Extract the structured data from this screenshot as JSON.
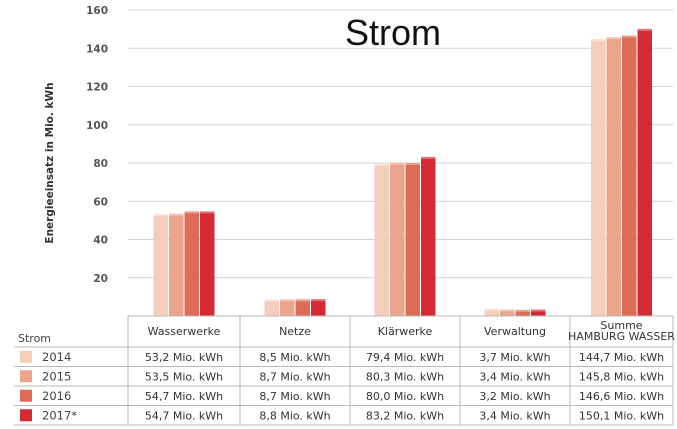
{
  "chart_data": {
    "type": "bar",
    "title": "Strom",
    "ylabel": "Energieeinsatz in Mio. kWh",
    "xlabel": "",
    "ylim": [
      0,
      160
    ],
    "yticks": [
      20,
      40,
      60,
      80,
      100,
      120,
      140,
      160
    ],
    "grid": true,
    "categories": [
      "Wasserwerke",
      "Netze",
      "Klärwerke",
      "Verwaltung",
      "Summe HAMBURG WASSER"
    ],
    "category_labels": [
      [
        "Wasserwerke"
      ],
      [
        "Netze"
      ],
      [
        "Klärwerke"
      ],
      [
        "Verwaltung"
      ],
      [
        "Summe",
        "HAMBURG WASSER"
      ]
    ],
    "series": [
      {
        "name": "2014",
        "color": "#f4cdbc",
        "values": [
          53.2,
          8.5,
          79.4,
          3.7,
          144.7
        ],
        "labels": [
          "53,2 Mio. kWh",
          "8,5 Mio. kWh",
          "79,4 Mio. kWh",
          "3,7 Mio. kWh",
          "144,7 Mio. kWh"
        ]
      },
      {
        "name": "2015",
        "color": "#eba58c",
        "values": [
          53.5,
          8.7,
          80.3,
          3.4,
          145.8
        ],
        "labels": [
          "53,5 Mio. kWh",
          "8,7 Mio. kWh",
          "80,3 Mio. kWh",
          "3,4 Mio. kWh",
          "145,8 Mio. kWh"
        ]
      },
      {
        "name": "2016",
        "color": "#de6b55",
        "values": [
          54.7,
          8.7,
          80.0,
          3.2,
          146.6
        ],
        "labels": [
          "54,7 Mio. kWh",
          "8,7 Mio. kWh",
          "80,0 Mio. kWh",
          "3,2 Mio. kWh",
          "146,6 Mio. kWh"
        ]
      },
      {
        "name": "2017*",
        "color": "#d42a33",
        "values": [
          54.7,
          8.8,
          83.2,
          3.4,
          150.1
        ],
        "labels": [
          "54,7 Mio. kWh",
          "8,8 Mio. kWh",
          "83,2 Mio. kWh",
          "3,4 Mio. kWh",
          "150,1 Mio. kWh"
        ]
      }
    ],
    "table_title": "Strom"
  }
}
